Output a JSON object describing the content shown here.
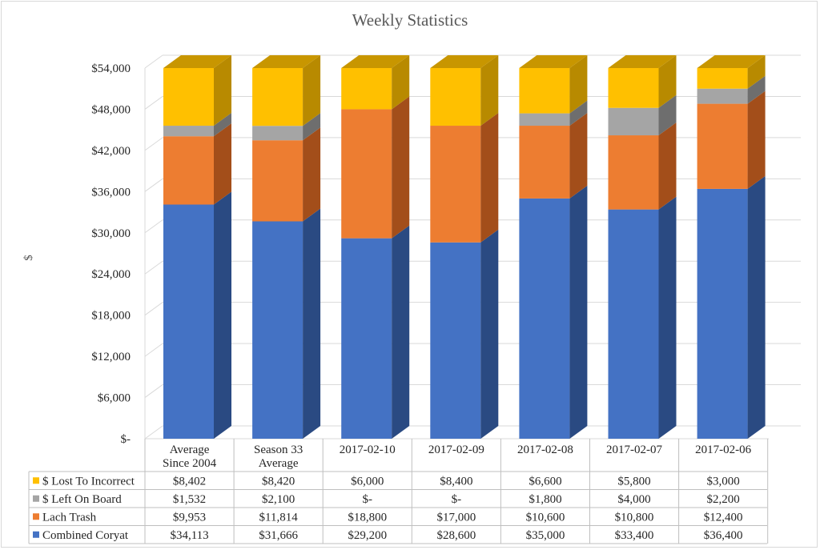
{
  "chart_data": {
    "type": "bar",
    "stacked": true,
    "three_d": true,
    "title": "Weekly Statistics",
    "ylabel": "$",
    "ylim": [
      0,
      54000
    ],
    "y_ticks": [
      "$-",
      "$6,000",
      "$12,000",
      "$18,000",
      "$24,000",
      "$30,000",
      "$36,000",
      "$42,000",
      "$48,000",
      "$54,000"
    ],
    "grid": true,
    "legend": "data-table",
    "categories": [
      [
        "Average",
        "Since 2004"
      ],
      [
        "Season 33",
        "Average"
      ],
      [
        "2017-02-10"
      ],
      [
        "2017-02-09"
      ],
      [
        "2017-02-08"
      ],
      [
        "2017-02-07"
      ],
      [
        "2017-02-06"
      ]
    ],
    "series": [
      {
        "name": "$ Lost To Incorrect",
        "color": "#FFC000",
        "side_color": "#B88A00",
        "top_color": "#C89600",
        "values": [
          8402,
          8420,
          6000,
          8400,
          6600,
          5800,
          3000
        ],
        "labels": [
          "$8,402",
          "$8,420",
          "$6,000",
          "$8,400",
          "$6,600",
          "$5,800",
          "$3,000"
        ]
      },
      {
        "name": "$ Left On Board",
        "color": "#A5A5A5",
        "side_color": "#6E6E6E",
        "top_color": "#7F7F7F",
        "values": [
          1532,
          2100,
          0,
          0,
          1800,
          4000,
          2200
        ],
        "labels": [
          "$1,532",
          "$2,100",
          "$-",
          "$-",
          "$1,800",
          "$4,000",
          "$2,200"
        ]
      },
      {
        "name": "Lach Trash",
        "color": "#ED7D31",
        "side_color": "#A34E1A",
        "top_color": "#C0621F",
        "values": [
          9953,
          11814,
          18800,
          17000,
          10600,
          10800,
          12400
        ],
        "labels": [
          "$9,953",
          "$11,814",
          "$18,800",
          "$17,000",
          "$10,600",
          "$10,800",
          "$12,400"
        ]
      },
      {
        "name": "Combined Coryat",
        "color": "#4472C4",
        "side_color": "#2A4A82",
        "top_color": "#34589A",
        "values": [
          34113,
          31666,
          29200,
          28600,
          35000,
          33400,
          36400
        ],
        "labels": [
          "$34,113",
          "$31,666",
          "$29,200",
          "$28,600",
          "$35,000",
          "$33,400",
          "$36,400"
        ]
      }
    ],
    "stack_order": [
      "Combined Coryat",
      "Lach Trash",
      "$ Left On Board",
      "$ Lost To Incorrect"
    ]
  }
}
